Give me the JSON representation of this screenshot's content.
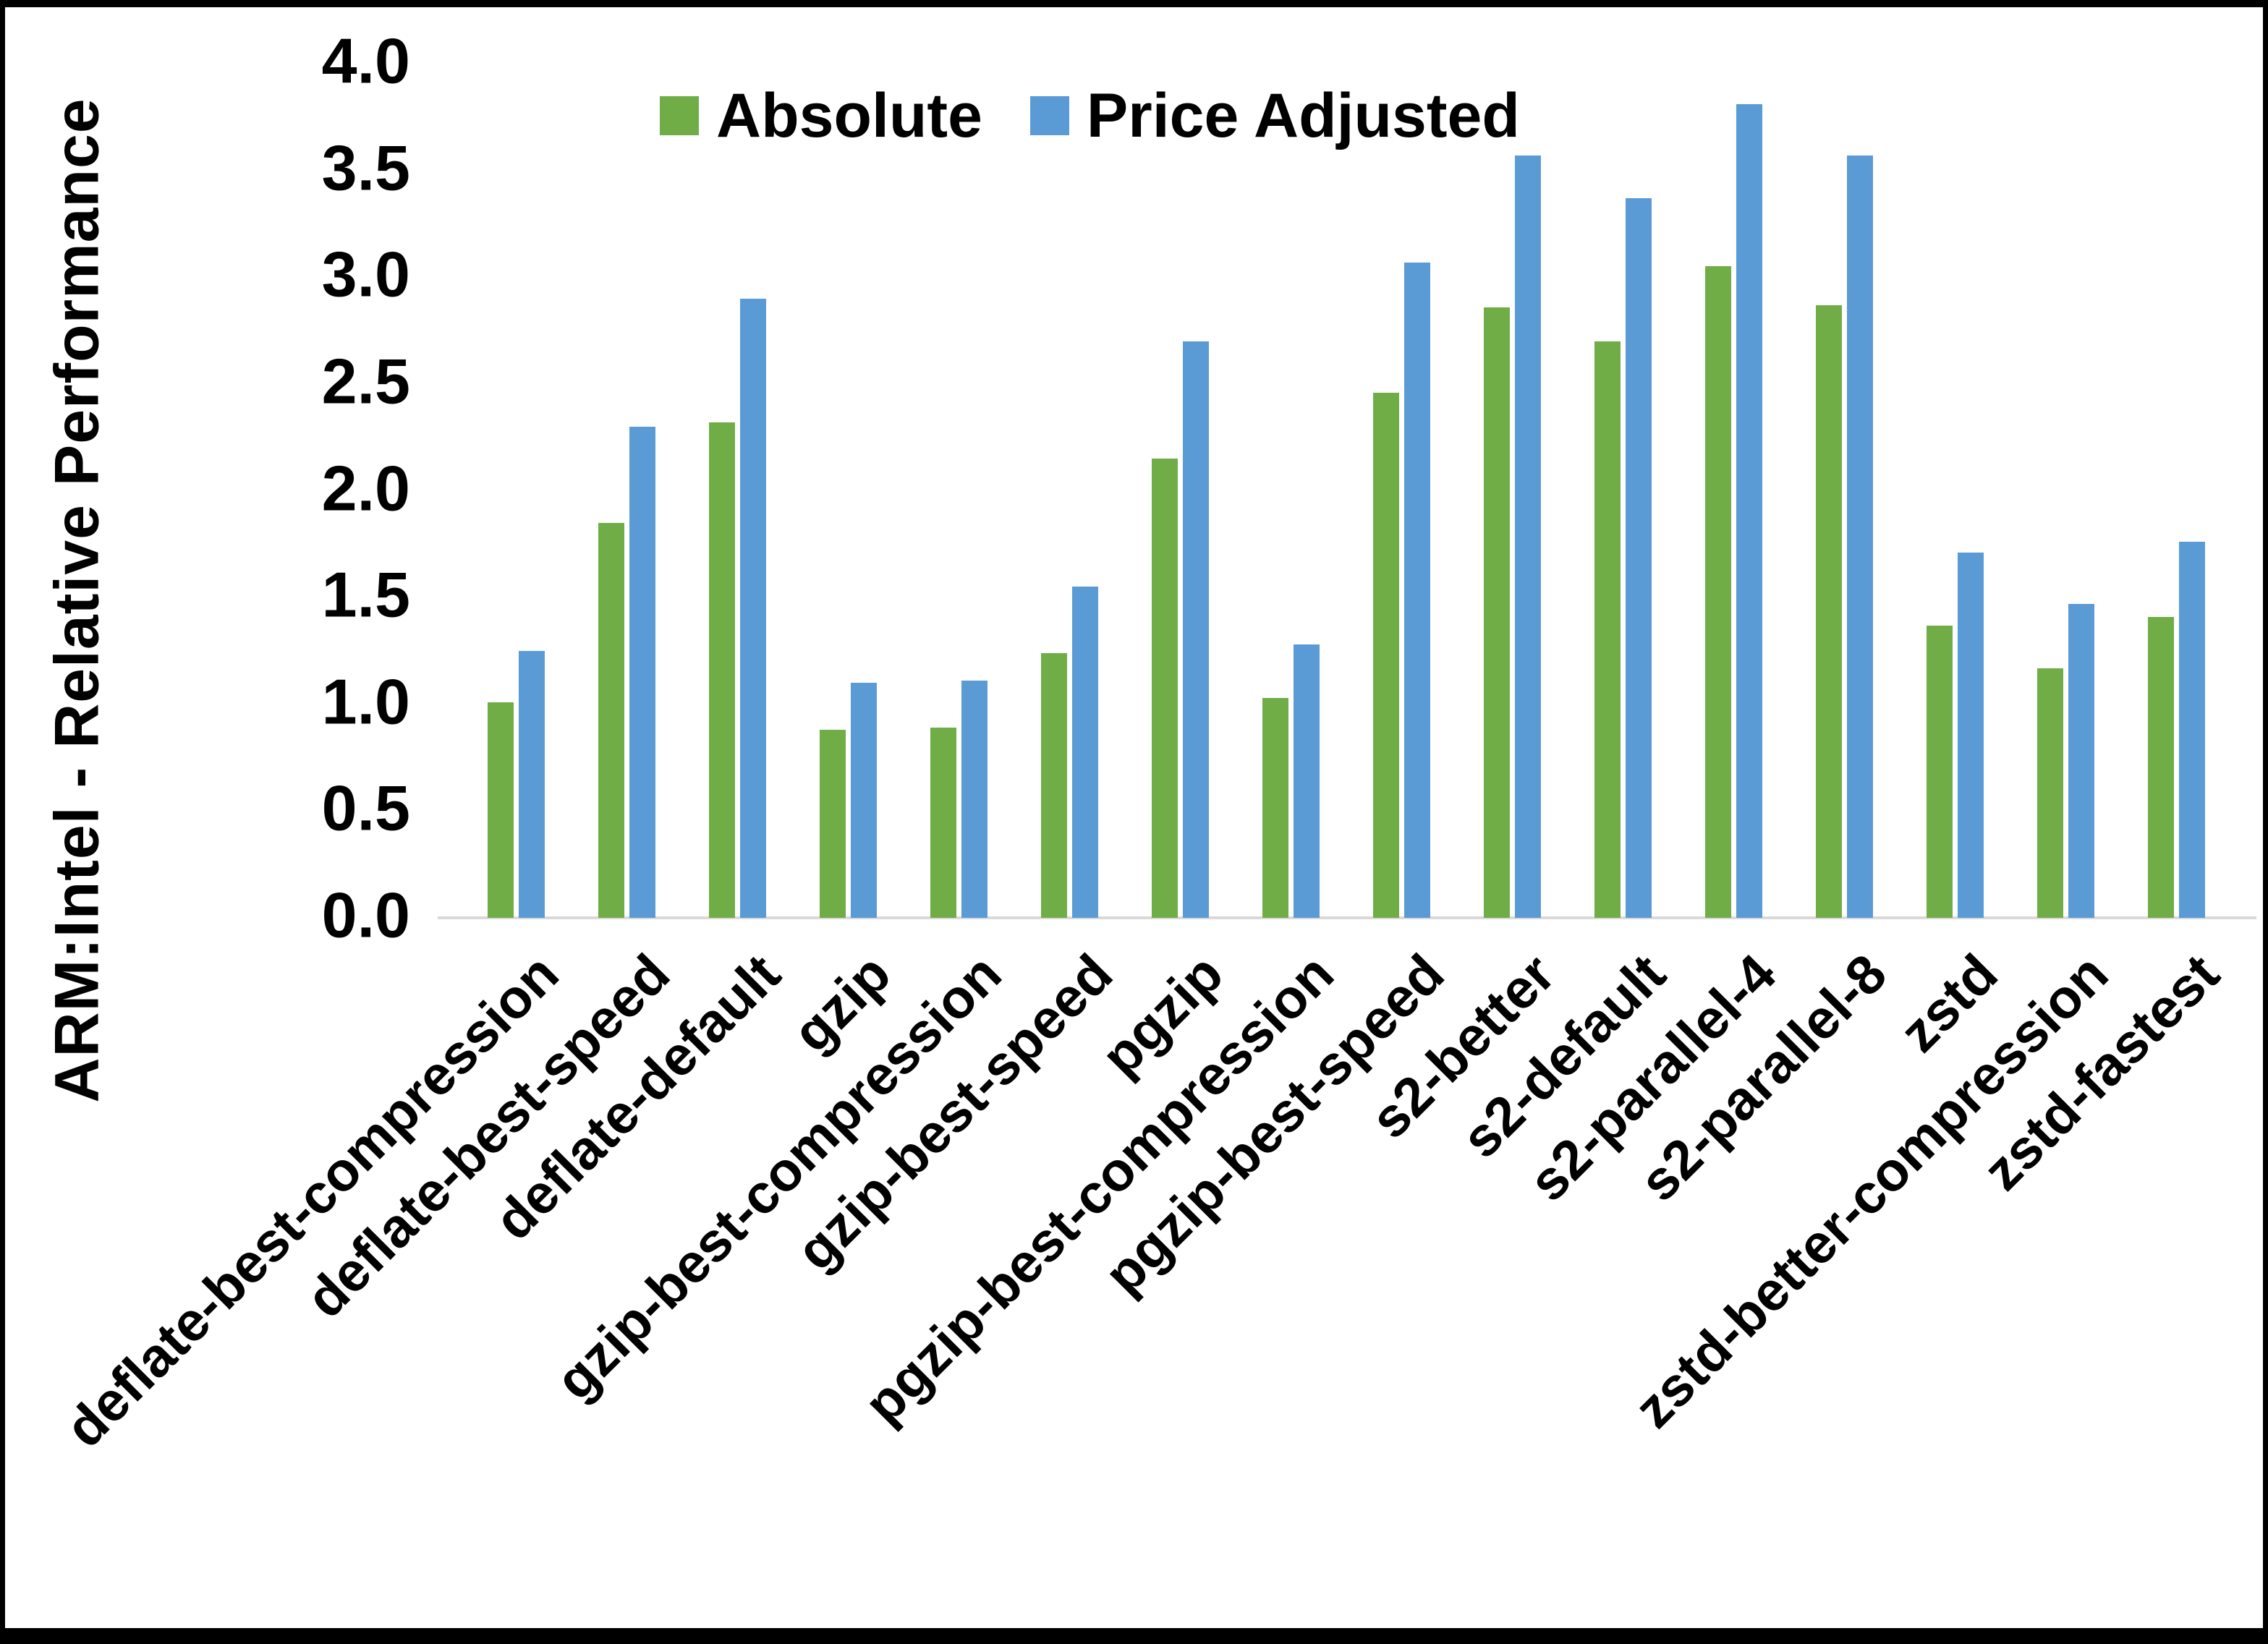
{
  "chart_data": {
    "type": "bar",
    "title": "",
    "xlabel": "",
    "ylabel": "ARM:Intel - Relative Performance",
    "ylim": [
      0.0,
      4.0
    ],
    "ytick_step": 0.5,
    "yticks": [
      "0.0",
      "0.5",
      "1.0",
      "1.5",
      "2.0",
      "2.5",
      "3.0",
      "3.5",
      "4.0"
    ],
    "grid": false,
    "legend_position": "top-center",
    "categories": [
      "deflate-best-compression",
      "deflate-best-speed",
      "deflate-default",
      "gzip",
      "gzip-best-compression",
      "gzip-best-speed",
      "pgzip",
      "pgzip-best-compression",
      "pgzip-best-speed",
      "s2-better",
      "s2-default",
      "s2-parallel-4",
      "s2-parallel-8",
      "zstd",
      "zstd-better-compression",
      "zstd-fastest"
    ],
    "series": [
      {
        "name": "Absolute",
        "color": "#70AD47",
        "values": [
          1.01,
          1.85,
          2.32,
          0.88,
          0.89,
          1.24,
          2.15,
          1.03,
          2.46,
          2.86,
          2.7,
          3.05,
          2.87,
          1.37,
          1.17,
          1.41
        ]
      },
      {
        "name": "Price Adjusted",
        "color": "#5B9BD5",
        "values": [
          1.25,
          2.3,
          2.9,
          1.1,
          1.11,
          1.55,
          2.7,
          1.28,
          3.07,
          3.57,
          3.37,
          3.81,
          3.57,
          1.71,
          1.47,
          1.76
        ]
      }
    ]
  },
  "legend": {
    "items": [
      {
        "label": "Absolute",
        "color": "#70AD47"
      },
      {
        "label": "Price Adjusted",
        "color": "#5B9BD5"
      }
    ]
  },
  "colors": {
    "axis_line": "#D9D9D9",
    "text": "#000000",
    "background": "#FFFFFF",
    "frame_border": "#000000"
  }
}
